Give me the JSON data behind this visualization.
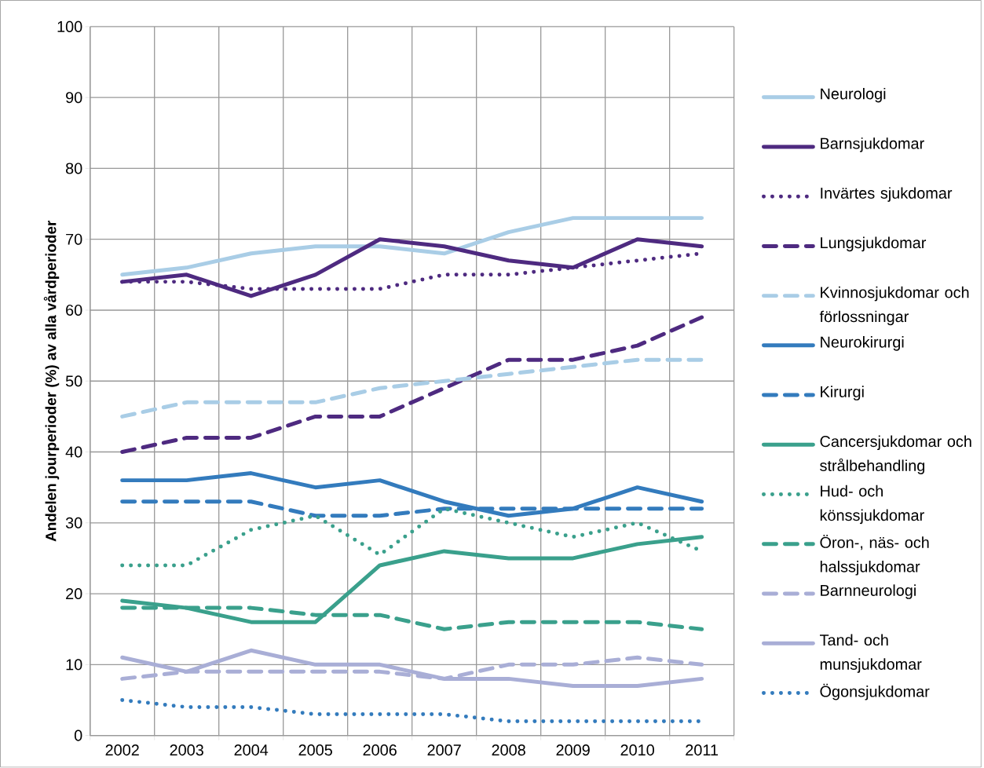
{
  "chart_data": {
    "type": "line",
    "ylabel": "Andelen jourperioder (%) av alla vårdperioder",
    "categories": [
      "2002",
      "2003",
      "2004",
      "2005",
      "2006",
      "2007",
      "2008",
      "2009",
      "2010",
      "2011"
    ],
    "series": [
      {
        "name": "Neurologi",
        "color": "#a9cde6",
        "line_style": "solid",
        "values": [
          65,
          66,
          68,
          69,
          69,
          68,
          71,
          73,
          73,
          73
        ]
      },
      {
        "name": "Barnsjukdomar",
        "color": "#4e2a80",
        "line_style": "solid",
        "values": [
          64,
          65,
          62,
          65,
          70,
          69,
          67,
          66,
          70,
          69
        ]
      },
      {
        "name": "Invärtes sjukdomar",
        "color": "#4e2a80",
        "line_style": "dotted",
        "values": [
          64,
          64,
          63,
          63,
          63,
          65,
          65,
          66,
          67,
          68
        ]
      },
      {
        "name": "Lungsjukdomar",
        "color": "#4e2a80",
        "line_style": "dashed",
        "values": [
          40,
          42,
          42,
          45,
          45,
          49,
          53,
          53,
          55,
          59
        ]
      },
      {
        "name": "Kvinnosjukdomar och förlossningar",
        "color": "#a9cde6",
        "line_style": "dashed",
        "values": [
          45,
          47,
          47,
          47,
          49,
          50,
          51,
          52,
          53,
          53
        ]
      },
      {
        "name": "Neurokirurgi",
        "color": "#337bbd",
        "line_style": "solid",
        "values": [
          36,
          36,
          37,
          35,
          36,
          33,
          31,
          32,
          35,
          33
        ]
      },
      {
        "name": "Kirurgi",
        "color": "#337bbd",
        "line_style": "dashed",
        "values": [
          33,
          33,
          33,
          31,
          31,
          32,
          32,
          32,
          32,
          32
        ]
      },
      {
        "name": "Cancersjukdomar och strålbehandling",
        "color": "#3aa08c",
        "line_style": "solid",
        "values": [
          19,
          18,
          16,
          16,
          24,
          26,
          25,
          25,
          27,
          28
        ]
      },
      {
        "name": "Hud- och könssjukdomar",
        "color": "#3aa08c",
        "line_style": "dotted",
        "values": [
          24,
          24,
          29,
          31,
          25.5,
          32,
          30,
          28,
          30,
          26
        ]
      },
      {
        "name": "Öron-, näs- och halssjukdomar",
        "color": "#3aa08c",
        "line_style": "dashed",
        "values": [
          18,
          18,
          18,
          17,
          17,
          15,
          16,
          16,
          16,
          15
        ]
      },
      {
        "name": "Barnneurologi",
        "color": "#a9aed6",
        "line_style": "dashed",
        "values": [
          8,
          9,
          9,
          9,
          9,
          8,
          10,
          10,
          11,
          10
        ]
      },
      {
        "name": "Tand- och munsjukdomar",
        "color": "#a9aed6",
        "line_style": "solid",
        "values": [
          11,
          9,
          12,
          10,
          10,
          8,
          8,
          7,
          7,
          8
        ]
      },
      {
        "name": "Ögonsjukdomar",
        "color": "#337bbd",
        "line_style": "dotted",
        "values": [
          5,
          4,
          4,
          3,
          3,
          3,
          2,
          2,
          2,
          2
        ]
      }
    ],
    "ylim": [
      0,
      100
    ],
    "yticks": [
      0,
      10,
      20,
      30,
      40,
      50,
      60,
      70,
      80,
      90,
      100
    ],
    "grid": true,
    "legend": "right"
  }
}
